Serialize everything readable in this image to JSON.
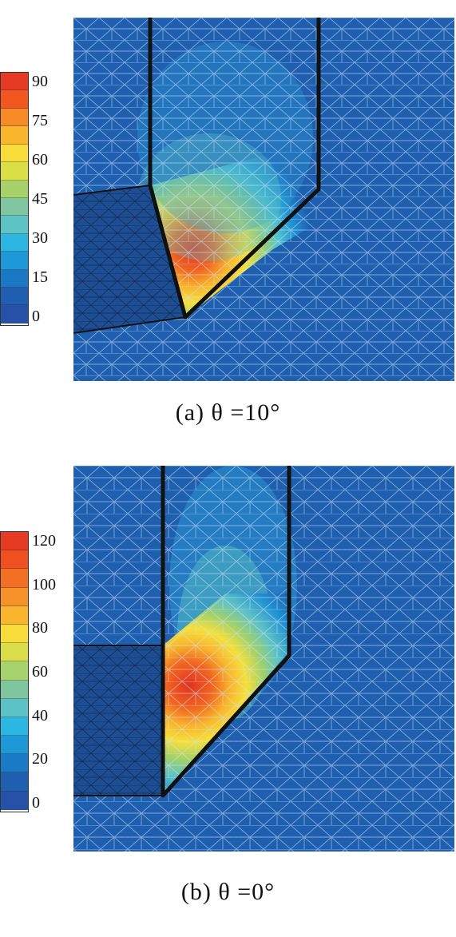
{
  "panels": [
    {
      "caption": "(a) θ =10°",
      "colorbar_ticks": [
        "90",
        "75",
        "60",
        "45",
        "30",
        "15",
        "0"
      ],
      "colorbar_levels": [
        "#e63a22",
        "#f2571f",
        "#f58a26",
        "#f9b62c",
        "#f7dc3a",
        "#d9df45",
        "#a7d26b",
        "#7fc6a1",
        "#5ec3c4",
        "#2cb7e3",
        "#1e98d6",
        "#1b78c4",
        "#1f5eb0",
        "#2552a6"
      ]
    },
    {
      "caption": "(b) θ =0°",
      "colorbar_ticks": [
        "120",
        "100",
        "80",
        "60",
        "40",
        "20",
        "0"
      ],
      "colorbar_levels": [
        "#e63a22",
        "#f04f1f",
        "#f26f23",
        "#f5922a",
        "#f9b52e",
        "#f8dc3c",
        "#d9de48",
        "#a6d36c",
        "#7fc69f",
        "#5dc2c6",
        "#2cb6e2",
        "#1e99d7",
        "#1b7ac5",
        "#1f60b1",
        "#2552a6"
      ]
    }
  ],
  "colors": {
    "background_field": "#1f5fb0",
    "workpiece_dark": "#1d4e93",
    "tool_outline": "#111111",
    "mesh_line": "#cfe3f3"
  }
}
